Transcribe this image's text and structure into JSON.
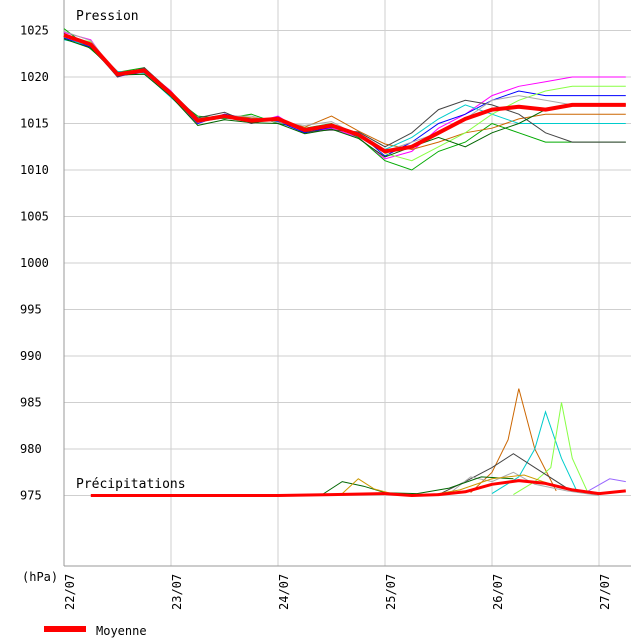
{
  "chart_data": {
    "type": "line",
    "title": "Pression",
    "subtitle": "Précipitations",
    "ylabel": "(hPa)",
    "ylim": [
      970,
      1027
    ],
    "yticks": [
      1025,
      1020,
      1015,
      1010,
      1005,
      1000,
      995,
      990,
      985,
      980,
      975
    ],
    "xticks": [
      "22/07",
      "23/07",
      "24/07",
      "25/07",
      "26/07",
      "27/07"
    ],
    "grid": true,
    "legend": [
      {
        "name": "Moyenne",
        "color": "#ff0000"
      }
    ],
    "colors": {
      "mean": "#ff0000",
      "members": [
        "#ff00ff",
        "#00aa00",
        "#0000ff",
        "#cc6600",
        "#00cccc",
        "#88ff44",
        "#444444",
        "#aaaaaa",
        "#006600",
        "#cc9900",
        "#9966ff",
        "#66cc66"
      ]
    },
    "pressure_mean": {
      "x": [
        0,
        0.25,
        0.5,
        0.75,
        1.0,
        1.25,
        1.5,
        1.75,
        2.0,
        2.25,
        2.5,
        2.75,
        3.0,
        3.25,
        3.5,
        3.75,
        4.0,
        4.25,
        4.5,
        4.75,
        5.0,
        5.25
      ],
      "values": [
        1024.5,
        1023.5,
        1020.3,
        1020.7,
        1018.2,
        1015.3,
        1015.8,
        1015.3,
        1015.5,
        1014.3,
        1014.8,
        1013.8,
        1012.0,
        1012.5,
        1014.0,
        1015.5,
        1016.5,
        1016.8,
        1016.5,
        1017.0,
        1017.0,
        1017.0
      ]
    },
    "pressure_members": [
      {
        "values": [
          1024.8,
          1024.0,
          1020.0,
          1020.8,
          1018.5,
          1015.0,
          1016.0,
          1015.0,
          1015.8,
          1014.0,
          1014.5,
          1013.5,
          1011.2,
          1012.0,
          1014.5,
          1016.0,
          1018.0,
          1019.0,
          1019.5,
          1020,
          1020,
          1020
        ]
      },
      {
        "values": [
          1025.2,
          1023.0,
          1020.5,
          1021.0,
          1018.0,
          1015.8,
          1015.5,
          1016.0,
          1015.0,
          1014.5,
          1015.0,
          1013.5,
          1011.0,
          1010.0,
          1012.0,
          1013.0,
          1015.0,
          1014.0,
          1013.0,
          1013,
          1013,
          1013
        ]
      },
      {
        "values": [
          1024.2,
          1023.2,
          1020.1,
          1020.5,
          1018.0,
          1015.0,
          1016.0,
          1015.5,
          1015.2,
          1014.0,
          1014.6,
          1014.0,
          1011.5,
          1013.0,
          1015.0,
          1016.0,
          1017.5,
          1018.5,
          1018.0,
          1018,
          1018,
          1018
        ]
      },
      {
        "values": [
          1024.6,
          1023.6,
          1020.2,
          1020.9,
          1018.3,
          1015.5,
          1015.9,
          1015.6,
          1015.4,
          1014.6,
          1015.8,
          1014.2,
          1012.8,
          1012.2,
          1013.0,
          1014.0,
          1014.5,
          1015.5,
          1016.0,
          1016,
          1016,
          1016
        ]
      },
      {
        "values": [
          1024.0,
          1023.4,
          1020.6,
          1020.4,
          1017.8,
          1015.2,
          1015.6,
          1015.2,
          1015.6,
          1014.2,
          1014.9,
          1013.6,
          1012.2,
          1013.5,
          1015.5,
          1017.0,
          1016.0,
          1015.0,
          1015.0,
          1015,
          1015,
          1015
        ]
      },
      {
        "values": [
          1024.3,
          1023.8,
          1020.4,
          1020.6,
          1018.1,
          1015.4,
          1015.7,
          1015.4,
          1015.3,
          1014.4,
          1014.7,
          1013.9,
          1011.8,
          1011.0,
          1012.5,
          1014.0,
          1016.0,
          1017.5,
          1018.5,
          1019,
          1019,
          1019
        ]
      },
      {
        "values": [
          1024.7,
          1023.3,
          1020.0,
          1021.0,
          1018.4,
          1015.6,
          1016.2,
          1015.0,
          1015.7,
          1014.1,
          1014.3,
          1014.1,
          1012.5,
          1014.0,
          1016.5,
          1017.5,
          1017.0,
          1016.0,
          1014.0,
          1013,
          1013,
          1013
        ]
      },
      {
        "values": [
          1024.9,
          1023.9,
          1020.3,
          1020.8,
          1018.0,
          1015.1,
          1015.8,
          1015.8,
          1015.1,
          1014.8,
          1015.2,
          1013.7,
          1012.0,
          1013.0,
          1014.0,
          1015.5,
          1017.5,
          1018.0,
          1017.5,
          1017,
          1017,
          1017
        ]
      },
      {
        "values": [
          1024.1,
          1023.1,
          1020.2,
          1020.3,
          1017.9,
          1014.8,
          1015.4,
          1015.1,
          1015.0,
          1013.9,
          1014.4,
          1013.4,
          1011.4,
          1012.5,
          1013.5,
          1012.5,
          1014.0,
          1015.0,
          1016.5,
          1017,
          1017,
          1017
        ]
      }
    ],
    "precip_mean": {
      "x": [
        0.25,
        1.0,
        1.5,
        2.0,
        2.5,
        3.0,
        3.25,
        3.5,
        3.75,
        4.0,
        4.25,
        4.5,
        4.75,
        5.0,
        5.25
      ],
      "values": [
        975.0,
        975.0,
        975.0,
        975.0,
        975.1,
        975.2,
        975.0,
        975.1,
        975.4,
        976.2,
        976.6,
        976.3,
        975.6,
        975.2,
        975.5
      ]
    },
    "precip_members": [
      {
        "x": [
          3.8,
          4.0,
          4.15,
          4.25,
          4.4,
          4.6
        ],
        "values": [
          975.3,
          977.5,
          981.0,
          986.5,
          980.0,
          975.5
        ]
      },
      {
        "x": [
          4.0,
          4.25,
          4.4,
          4.5,
          4.65,
          4.8
        ],
        "values": [
          975.2,
          977.0,
          980.0,
          984.0,
          979.0,
          975.3
        ]
      },
      {
        "x": [
          4.2,
          4.4,
          4.55,
          4.65,
          4.75,
          4.9
        ],
        "values": [
          975.1,
          976.5,
          978.0,
          985.0,
          979.0,
          975.2
        ]
      },
      {
        "x": [
          3.5,
          3.75,
          4.0,
          4.2,
          4.4,
          4.7,
          5.0
        ],
        "values": [
          975.1,
          976.5,
          978.0,
          979.5,
          978.0,
          975.8,
          975.2
        ]
      },
      {
        "x": [
          3.6,
          3.8,
          4.0,
          4.2,
          4.4,
          4.7,
          5.0
        ],
        "values": [
          975.2,
          977.0,
          976.5,
          977.5,
          976.2,
          975.5,
          975.0
        ]
      },
      {
        "x": [
          2.4,
          2.6,
          2.8,
          3.0,
          3.3,
          3.6,
          3.9,
          4.2
        ],
        "values": [
          975.0,
          976.5,
          976.0,
          975.3,
          975.2,
          975.8,
          977.0,
          976.8
        ]
      },
      {
        "x": [
          2.6,
          2.75,
          2.9,
          3.1,
          3.4,
          3.7,
          4.0,
          4.3,
          4.6
        ],
        "values": [
          975.2,
          976.8,
          975.7,
          975.1,
          975.0,
          975.6,
          976.8,
          977.2,
          976.0
        ]
      },
      {
        "x": [
          4.9,
          5.1,
          5.25
        ],
        "values": [
          975.5,
          976.8,
          976.5
        ]
      }
    ],
    "legend_label": "Moyenne"
  }
}
